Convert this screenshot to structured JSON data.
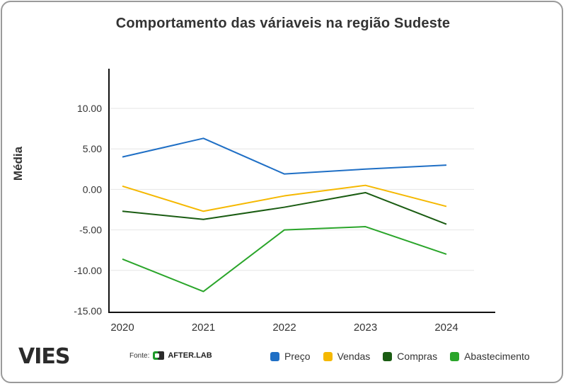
{
  "chart_data": {
    "type": "line",
    "title": "Comportamento das váriaveis na região Sudeste",
    "xlabel": "",
    "ylabel": "Média",
    "categories": [
      "2020",
      "2021",
      "2022",
      "2023",
      "2024"
    ],
    "ylim": [
      -15,
      15
    ],
    "yticks": [
      10,
      5,
      0,
      -5,
      -10,
      -15
    ],
    "ytick_labels": [
      "10.00",
      "5.00",
      "0.00",
      "-5.00",
      "-10.00",
      "-15.00"
    ],
    "series": [
      {
        "name": "Preço",
        "color": "#1f6fc5",
        "values": [
          4.0,
          6.3,
          1.9,
          2.5,
          3.0
        ]
      },
      {
        "name": "Vendas",
        "color": "#f5b800",
        "values": [
          0.4,
          -2.7,
          -0.8,
          0.5,
          -2.1
        ]
      },
      {
        "name": "Compras",
        "color": "#1a5c12",
        "values": [
          -2.7,
          -3.7,
          -2.2,
          -0.4,
          -4.3
        ]
      },
      {
        "name": "Abastecimento",
        "color": "#2aa52a",
        "values": [
          -8.6,
          -12.6,
          -5.0,
          -4.6,
          -8.0
        ]
      }
    ],
    "legend_position": "bottom-right"
  },
  "branding": {
    "logo_text": "VIES",
    "source_label": "Fonte:",
    "source_name": "AFTER.LAB"
  }
}
